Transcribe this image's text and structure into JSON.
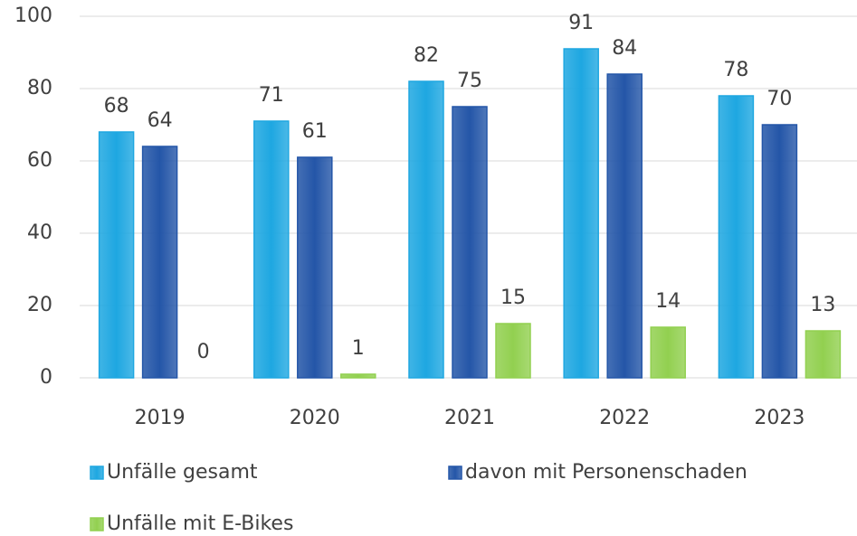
{
  "chart_data": {
    "type": "bar",
    "categories": [
      "2019",
      "2020",
      "2021",
      "2022",
      "2023"
    ],
    "series": [
      {
        "name": "Unfälle gesamt",
        "color": "#1ea7e1",
        "values": [
          68,
          71,
          82,
          91,
          78
        ]
      },
      {
        "name": "davon mit Personenschaden",
        "color": "#2456a8",
        "values": [
          64,
          61,
          75,
          84,
          70
        ]
      },
      {
        "name": "Unfälle mit E-Bikes",
        "color": "#92d050",
        "values": [
          0,
          1,
          15,
          14,
          13
        ]
      }
    ],
    "ylim": [
      0,
      100
    ],
    "yticks": [
      0,
      20,
      40,
      60,
      80,
      100
    ],
    "grid": true
  }
}
